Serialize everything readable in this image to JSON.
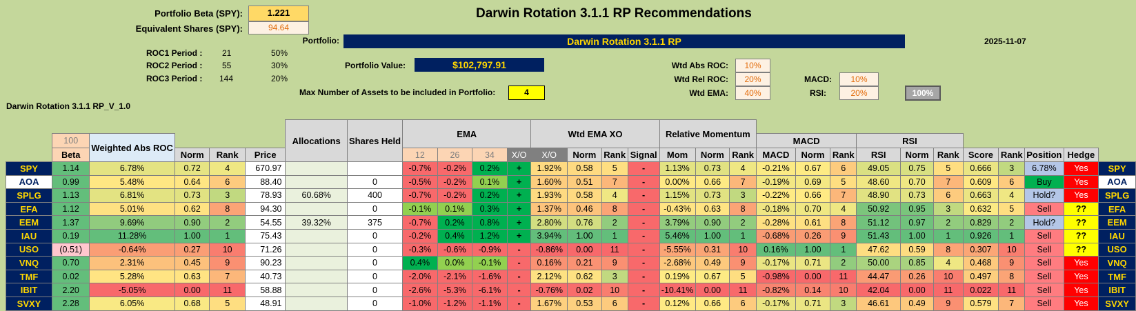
{
  "title": "Darwin Rotation 3.1.1 RP Recommendations",
  "date": "2025-11-07",
  "version_label": "Darwin Rotation 3.1.1 RP_V_1.0",
  "beta": {
    "label": "Portfolio Beta (SPY):",
    "value": "1.221"
  },
  "equiv": {
    "label": "Equivalent Shares (SPY):",
    "value": "94.64"
  },
  "roc_periods": [
    {
      "label": "ROC1 Period :",
      "period": "21",
      "weight": "50%"
    },
    {
      "label": "ROC2 Period :",
      "period": "55",
      "weight": "30%"
    },
    {
      "label": "ROC3 Period :",
      "period": "144",
      "weight": "20%"
    }
  ],
  "portfolio": {
    "label": "Portfolio:",
    "name": "Darwin Rotation 3.1.1 RP"
  },
  "portfolio_value": {
    "label": "Portfolio Value:",
    "value": "$102,797.91"
  },
  "max_assets": {
    "label": "Max Number of Assets to be included in Portfolio:",
    "value": "4"
  },
  "weights": {
    "abs_roc_label": "Wtd Abs ROC:",
    "abs_roc": "10%",
    "rel_roc_label": "Wtd Rel ROC:",
    "rel_roc": "20%",
    "ema_label": "Wtd EMA:",
    "ema": "40%",
    "macd_label": "MACD:",
    "macd": "10%",
    "rsi_label": "RSI:",
    "rsi": "20%",
    "total": "100%"
  },
  "headers": {
    "period_box": "100",
    "weighted_abs_roc": "Weighted Abs ROC",
    "allocations": "Allocations",
    "shares_held": "Shares Held",
    "ema": "EMA",
    "wtd_ema_xo": "Wtd EMA XO",
    "relative_momentum": "Relative Momentum",
    "macd": "MACD",
    "rsi": "RSI",
    "cols": [
      "Beta",
      "Norm",
      "Rank",
      "Price",
      "12",
      "26",
      "34",
      "X/O",
      "X/O",
      "Norm",
      "Rank",
      "Signal",
      "Mom",
      "Norm",
      "Rank",
      "MACD",
      "Norm",
      "Rank",
      "RSI",
      "Norm",
      "Rank",
      "Score",
      "Rank",
      "Position",
      "Hedge"
    ]
  },
  "colors": {
    "green": "#00b050",
    "light_green": "#63be7b",
    "yellow": "#ffeb84",
    "orange": "#fbaa77",
    "red": "#f8696b",
    "navy": "#002060",
    "gold": "#ffd700",
    "sell": "#ff7c80",
    "buy": "#00b050",
    "hold": "#b4c6e7"
  },
  "rows": [
    {
      "ticker": "SPY",
      "beta": "1.14",
      "wabs": "6.78%",
      "norm": "0.72",
      "rank": "4",
      "price": "670.97",
      "alloc": "",
      "shares": "",
      "e12": "-0.7%",
      "e26": "-0.2%",
      "e34": "0.2%",
      "xo": "+",
      "wxo": "1.92%",
      "wnorm": "0.58",
      "wrank": "5",
      "signal": "-",
      "mom": "1.13%",
      "mnorm": "0.73",
      "mrank": "4",
      "macd": "-0.21%",
      "macdnorm": "0.67",
      "macdrank": "6",
      "rsi": "49.05",
      "rsinorm": "0.75",
      "rsirank": "5",
      "score": "0.666",
      "srank": "3",
      "position": "6.78%",
      "hedge": "Yes"
    },
    {
      "ticker": "AOA",
      "beta": "0.99",
      "wabs": "5.48%",
      "norm": "0.64",
      "rank": "6",
      "price": "88.40",
      "alloc": "",
      "shares": "0",
      "e12": "-0.5%",
      "e26": "-0.2%",
      "e34": "0.1%",
      "xo": "+",
      "wxo": "1.60%",
      "wnorm": "0.51",
      "wrank": "7",
      "signal": "-",
      "mom": "0.00%",
      "mnorm": "0.66",
      "mrank": "7",
      "macd": "-0.19%",
      "macdnorm": "0.69",
      "macdrank": "5",
      "rsi": "48.60",
      "rsinorm": "0.70",
      "rsirank": "7",
      "score": "0.609",
      "srank": "6",
      "position": "Buy",
      "hedge": "Yes"
    },
    {
      "ticker": "SPLG",
      "beta": "1.13",
      "wabs": "6.81%",
      "norm": "0.73",
      "rank": "3",
      "price": "78.93",
      "alloc": "60.68%",
      "shares": "400",
      "e12": "-0.7%",
      "e26": "-0.2%",
      "e34": "0.2%",
      "xo": "+",
      "wxo": "1.93%",
      "wnorm": "0.58",
      "wrank": "4",
      "signal": "-",
      "mom": "1.15%",
      "mnorm": "0.73",
      "mrank": "3",
      "macd": "-0.22%",
      "macdnorm": "0.66",
      "macdrank": "7",
      "rsi": "48.90",
      "rsinorm": "0.73",
      "rsirank": "6",
      "score": "0.663",
      "srank": "4",
      "position": "Hold?",
      "hedge": "Yes"
    },
    {
      "ticker": "EFA",
      "beta": "1.12",
      "wabs": "5.01%",
      "norm": "0.62",
      "rank": "8",
      "price": "94.30",
      "alloc": "",
      "shares": "0",
      "e12": "-0.1%",
      "e26": "0.1%",
      "e34": "0.3%",
      "xo": "+",
      "wxo": "1.37%",
      "wnorm": "0.46",
      "wrank": "8",
      "signal": "-",
      "mom": "-0.43%",
      "mnorm": "0.63",
      "mrank": "8",
      "macd": "-0.18%",
      "macdnorm": "0.70",
      "macdrank": "4",
      "rsi": "50.92",
      "rsinorm": "0.95",
      "rsirank": "3",
      "score": "0.632",
      "srank": "5",
      "position": "Sell",
      "hedge": "??"
    },
    {
      "ticker": "EEM",
      "beta": "1.37",
      "wabs": "9.69%",
      "norm": "0.90",
      "rank": "2",
      "price": "54.55",
      "alloc": "39.32%",
      "shares": "375",
      "e12": "-0.7%",
      "e26": "0.2%",
      "e34": "0.8%",
      "xo": "+",
      "wxo": "2.80%",
      "wnorm": "0.76",
      "wrank": "2",
      "signal": "-",
      "mom": "3.79%",
      "mnorm": "0.90",
      "mrank": "2",
      "macd": "-0.28%",
      "macdnorm": "0.61",
      "macdrank": "8",
      "rsi": "51.12",
      "rsinorm": "0.97",
      "rsirank": "2",
      "score": "0.829",
      "srank": "2",
      "position": "Hold?",
      "hedge": "??"
    },
    {
      "ticker": "IAU",
      "beta": "0.19",
      "wabs": "11.28%",
      "norm": "1.00",
      "rank": "1",
      "price": "75.43",
      "alloc": "",
      "shares": "0",
      "e12": "-0.2%",
      "e26": "0.4%",
      "e34": "1.2%",
      "xo": "+",
      "wxo": "3.94%",
      "wnorm": "1.00",
      "wrank": "1",
      "signal": "-",
      "mom": "5.46%",
      "mnorm": "1.00",
      "mrank": "1",
      "macd": "-0.68%",
      "macdnorm": "0.26",
      "macdrank": "9",
      "rsi": "51.43",
      "rsinorm": "1.00",
      "rsirank": "1",
      "score": "0.926",
      "srank": "1",
      "position": "Sell",
      "hedge": "??"
    },
    {
      "ticker": "USO",
      "beta": "(0.51)",
      "wabs": "-0.64%",
      "norm": "0.27",
      "rank": "10",
      "price": "71.26",
      "alloc": "",
      "shares": "0",
      "e12": "-0.3%",
      "e26": "-0.6%",
      "e34": "-0.9%",
      "xo": "-",
      "wxo": "-0.86%",
      "wnorm": "0.00",
      "wrank": "11",
      "signal": "-",
      "mom": "-5.55%",
      "mnorm": "0.31",
      "mrank": "10",
      "macd": "0.16%",
      "macdnorm": "1.00",
      "macdrank": "1",
      "rsi": "47.62",
      "rsinorm": "0.59",
      "rsirank": "8",
      "score": "0.307",
      "srank": "10",
      "position": "Sell",
      "hedge": "??"
    },
    {
      "ticker": "VNQ",
      "beta": "0.70",
      "wabs": "2.31%",
      "norm": "0.45",
      "rank": "9",
      "price": "90.23",
      "alloc": "",
      "shares": "0",
      "e12": "0.4%",
      "e26": "0.0%",
      "e34": "-0.1%",
      "xo": "-",
      "wxo": "0.16%",
      "wnorm": "0.21",
      "wrank": "9",
      "signal": "-",
      "mom": "-2.68%",
      "mnorm": "0.49",
      "mrank": "9",
      "macd": "-0.17%",
      "macdnorm": "0.71",
      "macdrank": "2",
      "rsi": "50.00",
      "rsinorm": "0.85",
      "rsirank": "4",
      "score": "0.468",
      "srank": "9",
      "position": "Sell",
      "hedge": "Yes"
    },
    {
      "ticker": "TMF",
      "beta": "0.02",
      "wabs": "5.28%",
      "norm": "0.63",
      "rank": "7",
      "price": "40.73",
      "alloc": "",
      "shares": "0",
      "e12": "-2.0%",
      "e26": "-2.1%",
      "e34": "-1.6%",
      "xo": "-",
      "wxo": "2.12%",
      "wnorm": "0.62",
      "wrank": "3",
      "signal": "-",
      "mom": "0.19%",
      "mnorm": "0.67",
      "mrank": "5",
      "macd": "-0.98%",
      "macdnorm": "0.00",
      "macdrank": "11",
      "rsi": "44.47",
      "rsinorm": "0.26",
      "rsirank": "10",
      "score": "0.497",
      "srank": "8",
      "position": "Sell",
      "hedge": "Yes"
    },
    {
      "ticker": "IBIT",
      "beta": "2.20",
      "wabs": "-5.05%",
      "norm": "0.00",
      "rank": "11",
      "price": "58.88",
      "alloc": "",
      "shares": "0",
      "e12": "-2.6%",
      "e26": "-5.3%",
      "e34": "-6.1%",
      "xo": "-",
      "wxo": "-0.76%",
      "wnorm": "0.02",
      "wrank": "10",
      "signal": "-",
      "mom": "-10.41%",
      "mnorm": "0.00",
      "mrank": "11",
      "macd": "-0.82%",
      "macdnorm": "0.14",
      "macdrank": "10",
      "rsi": "42.04",
      "rsinorm": "0.00",
      "rsirank": "11",
      "score": "0.022",
      "srank": "11",
      "position": "Sell",
      "hedge": "Yes"
    },
    {
      "ticker": "SVXY",
      "beta": "2.28",
      "wabs": "6.05%",
      "norm": "0.68",
      "rank": "5",
      "price": "48.91",
      "alloc": "",
      "shares": "0",
      "e12": "-1.0%",
      "e26": "-1.2%",
      "e34": "-1.1%",
      "xo": "-",
      "wxo": "1.67%",
      "wnorm": "0.53",
      "wrank": "6",
      "signal": "-",
      "mom": "0.12%",
      "mnorm": "0.66",
      "mrank": "6",
      "macd": "-0.17%",
      "macdnorm": "0.71",
      "macdrank": "3",
      "rsi": "46.61",
      "rsinorm": "0.49",
      "rsirank": "9",
      "score": "0.579",
      "srank": "7",
      "position": "Sell",
      "hedge": "Yes"
    }
  ]
}
